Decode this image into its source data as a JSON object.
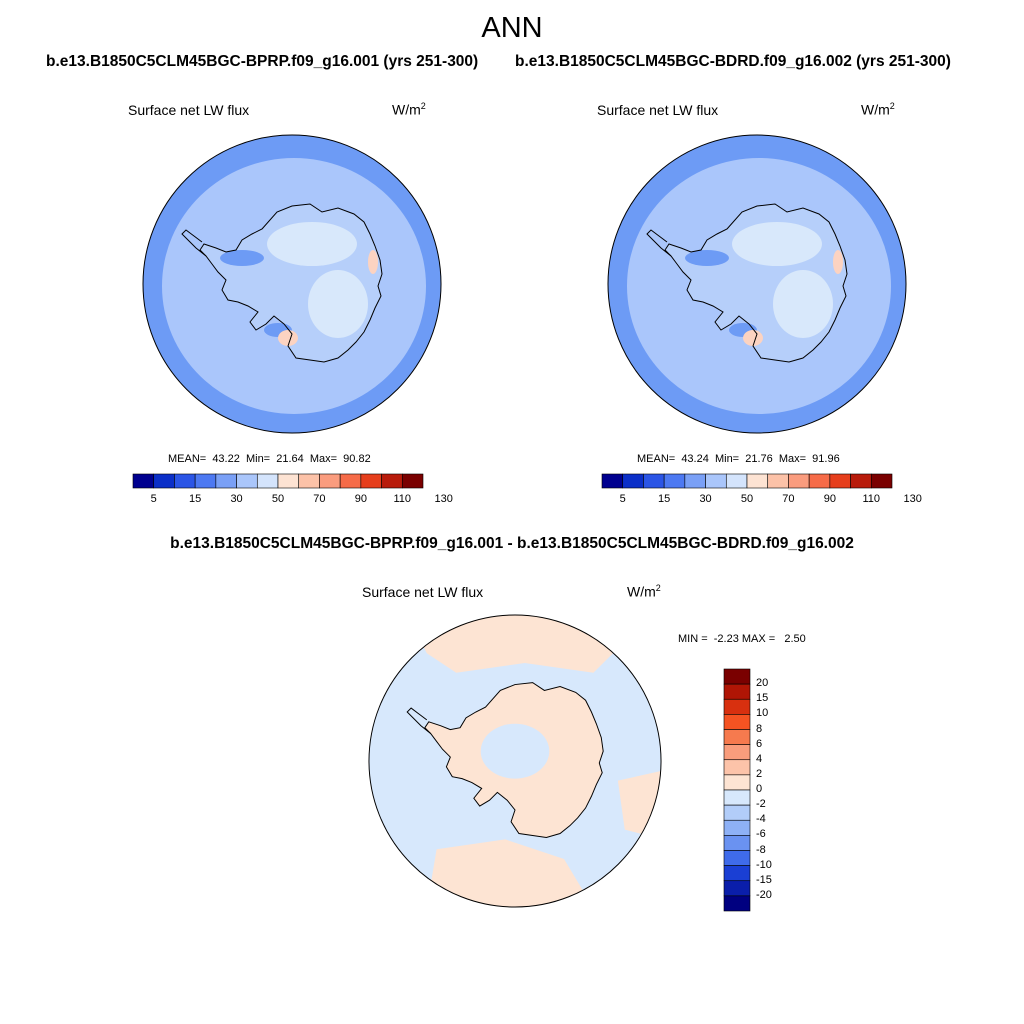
{
  "title": "ANN",
  "colors": {
    "ocean_panel": "#aac6fb",
    "ocean_deep": "#6d9bf5",
    "land_light": "#d8e8fb",
    "land_mid": "#b6cffa",
    "warm": "#fcd3c1",
    "diff_neg": "#d7e8fc",
    "diff_pos": "#fde4d3"
  },
  "panels": [
    {
      "case": "b.e13.B1850C5CLM45BGC-BPRP.f09_g16.001 (yrs 251-300)",
      "label": "Surface net LW flux",
      "units": "W/m",
      "units_sup": "2",
      "stats": "MEAN=  43.22  Min=  21.64  Max=  90.82"
    },
    {
      "case": "b.e13.B1850C5CLM45BGC-BDRD.f09_g16.002 (yrs 251-300)",
      "label": "Surface net LW flux",
      "units": "W/m",
      "units_sup": "2",
      "stats": "MEAN=  43.24  Min=  21.76  Max=  91.96"
    }
  ],
  "colorbar": {
    "ticks": [
      "5",
      "15",
      "30",
      "50",
      "70",
      "90",
      "110",
      "130"
    ],
    "colors": [
      "#00008f",
      "#0b2fc8",
      "#2b55e6",
      "#4d79f2",
      "#7aa0f6",
      "#aac6fb",
      "#d4e4fc",
      "#fde3d3",
      "#fcc2a8",
      "#fa9c7e",
      "#f66b48",
      "#e63e1c",
      "#b81b0b",
      "#7a0000"
    ]
  },
  "difference": {
    "title": "b.e13.B1850C5CLM45BGC-BPRP.f09_g16.001 - b.e13.B1850C5CLM45BGC-BDRD.f09_g16.002",
    "label": "Surface net LW flux",
    "units": "W/m",
    "units_sup": "2",
    "stats": "MIN =  -2.23 MAX =   2.50",
    "colorbar": {
      "ticks": [
        "20",
        "15",
        "10",
        "8",
        "6",
        "4",
        "2",
        "0",
        "-2",
        "-4",
        "-6",
        "-8",
        "-10",
        "-15",
        "-20"
      ],
      "colors": [
        "#7a0000",
        "#b01505",
        "#d8300f",
        "#f55322",
        "#f67a4e",
        "#f99d7c",
        "#fcc3a9",
        "#fde4d3",
        "#d7e8fc",
        "#b2cdf9",
        "#8eb1f6",
        "#6a92f1",
        "#3f6bea",
        "#1a3fd4",
        "#0a1eaa",
        "#000080"
      ]
    }
  }
}
